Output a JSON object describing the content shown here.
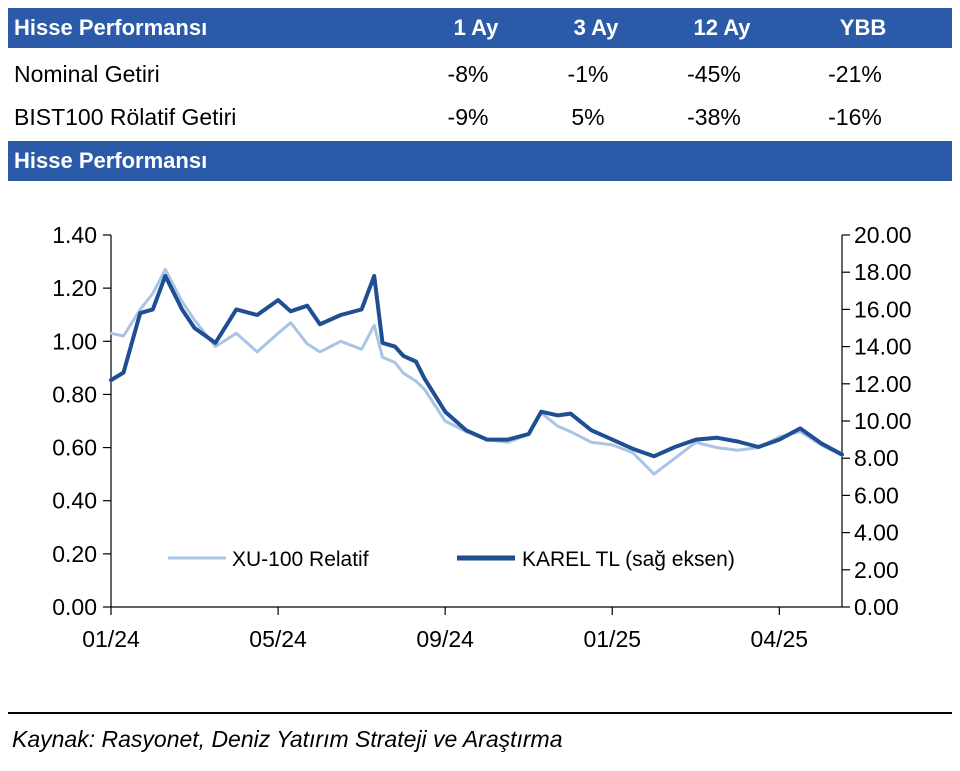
{
  "table": {
    "header": {
      "title": "Hisse Performansı",
      "columns": [
        "1 Ay",
        "3 Ay",
        "12 Ay",
        "YBB"
      ]
    },
    "rows": [
      {
        "label": "Nominal Getiri",
        "values": [
          "-8%",
          "-1%",
          "-45%",
          "-21%"
        ]
      },
      {
        "label": "BIST100 Rölatif Getiri",
        "values": [
          "-9%",
          "5%",
          "-38%",
          "-16%"
        ]
      }
    ]
  },
  "chart_section_title": "Hisse Performansı",
  "chart_data": {
    "type": "line",
    "x_tick_labels": [
      "01/24",
      "05/24",
      "09/24",
      "01/25",
      "04/25"
    ],
    "left_axis": {
      "ylim": [
        0,
        1.4
      ],
      "ticks": [
        "0.00",
        "0.20",
        "0.40",
        "0.60",
        "0.80",
        "1.00",
        "1.20",
        "1.40"
      ]
    },
    "right_axis": {
      "ylim": [
        0,
        20
      ],
      "ticks": [
        "0.00",
        "2.00",
        "4.00",
        "6.00",
        "8.00",
        "10.00",
        "12.00",
        "14.00",
        "16.00",
        "18.00",
        "20.00"
      ]
    },
    "series": [
      {
        "name": "XU-100 Relatif",
        "axis": "left",
        "color": "#a9c4e4",
        "x": [
          0,
          0.3,
          0.7,
          1.0,
          1.3,
          1.7,
          2.0,
          2.5,
          3.0,
          3.5,
          4.0,
          4.3,
          4.7,
          5.0,
          5.5,
          6.0,
          6.3,
          6.5,
          6.8,
          7.0,
          7.3,
          7.5,
          8.0,
          8.5,
          9.0,
          9.5,
          10.0,
          10.3,
          10.7,
          11.0,
          11.5,
          12.0,
          12.5,
          13.0,
          13.5,
          14.0,
          14.5,
          15.0,
          15.5,
          16.0,
          16.5,
          17.0,
          17.5
        ],
        "values": [
          1.03,
          1.02,
          1.12,
          1.18,
          1.27,
          1.15,
          1.08,
          0.98,
          1.03,
          0.96,
          1.03,
          1.07,
          0.99,
          0.96,
          1.0,
          0.97,
          1.06,
          0.94,
          0.92,
          0.88,
          0.85,
          0.82,
          0.7,
          0.66,
          0.63,
          0.62,
          0.65,
          0.73,
          0.68,
          0.66,
          0.62,
          0.61,
          0.58,
          0.5,
          0.56,
          0.62,
          0.6,
          0.59,
          0.6,
          0.64,
          0.66,
          0.61,
          0.57
        ]
      },
      {
        "name": "KAREL TL (sağ eksen)",
        "axis": "right",
        "color": "#1f4e93",
        "x": [
          0,
          0.3,
          0.7,
          1.0,
          1.3,
          1.7,
          2.0,
          2.5,
          3.0,
          3.5,
          4.0,
          4.3,
          4.7,
          5.0,
          5.5,
          6.0,
          6.3,
          6.5,
          6.8,
          7.0,
          7.3,
          7.5,
          8.0,
          8.5,
          9.0,
          9.5,
          10.0,
          10.3,
          10.7,
          11.0,
          11.5,
          12.0,
          12.5,
          13.0,
          13.5,
          14.0,
          14.5,
          15.0,
          15.5,
          16.0,
          16.5,
          17.0,
          17.5
        ],
        "values": [
          12.2,
          12.6,
          15.8,
          16.0,
          17.8,
          16.0,
          15.0,
          14.2,
          16.0,
          15.7,
          16.5,
          15.9,
          16.2,
          15.2,
          15.7,
          16.0,
          17.8,
          14.2,
          14.0,
          13.5,
          13.2,
          12.3,
          10.5,
          9.5,
          9.0,
          9.0,
          9.3,
          10.5,
          10.3,
          10.4,
          9.5,
          9.0,
          8.5,
          8.1,
          8.6,
          9.0,
          9.1,
          8.9,
          8.6,
          9.0,
          9.6,
          8.8,
          8.2
        ]
      }
    ],
    "legend_position": "bottom"
  },
  "source": "Kaynak: Rasyonet, Deniz Yatırım Strateji ve Araştırma"
}
